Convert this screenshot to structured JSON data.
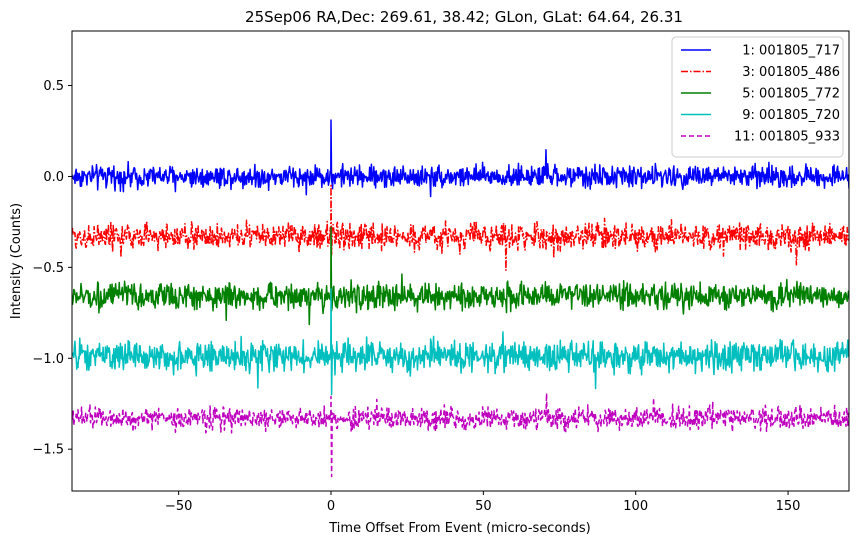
{
  "chart_data": {
    "type": "line",
    "title": "25Sep06 RA,Dec:  269.61,  38.42; GLon, GLat:   64.64,  26.31",
    "xlabel": "Time Offset From Event (micro-seconds)",
    "ylabel": "Intensity (Counts)",
    "xlim": [
      -85,
      170
    ],
    "ylim": [
      -1.73,
      0.8
    ],
    "xticks": [
      -50,
      0,
      50,
      100,
      150
    ],
    "xtick_labels": [
      "−50",
      "0",
      "50",
      "100",
      "150"
    ],
    "yticks": [
      0.5,
      0.0,
      -0.5,
      -1.0,
      -1.5
    ],
    "ytick_labels": [
      "0.5",
      "0.0",
      "−0.5",
      "−1.0",
      "−1.5"
    ],
    "grid": false,
    "legend_position": "top-right",
    "event_x": 0,
    "series": [
      {
        "name": "1: 001805_717",
        "label": "1: 001805_717",
        "color": "#0000ff",
        "dash": "solid",
        "baseline": 0.0,
        "noise_amplitude": 0.03,
        "spike_peak": 0.31,
        "spike_trough": -0.03
      },
      {
        "name": "3: 001805_486",
        "label": "3: 001805_486",
        "color": "#ff0000",
        "dash": "dashdot",
        "baseline": -0.33,
        "noise_amplitude": 0.035,
        "spike_peak": -0.05,
        "spike_trough": -0.43
      },
      {
        "name": "5: 001805_772",
        "label": "5: 001805_772",
        "color": "#008000",
        "dash": "solid",
        "baseline": -0.66,
        "noise_amplitude": 0.035,
        "spike_peak": -0.28,
        "spike_trough": -0.74
      },
      {
        "name": "9: 001805_720",
        "label": "9: 001805_720",
        "color": "#00bfbf",
        "dash": "solid",
        "baseline": -0.99,
        "noise_amplitude": 0.04,
        "spike_peak": -0.62,
        "spike_trough": -1.2
      },
      {
        "name": "11: 001805_933",
        "label": "11: 001805_933",
        "color": "#bf00bf",
        "dash": "dashed",
        "baseline": -1.33,
        "noise_amplitude": 0.03,
        "spike_peak": -1.21,
        "spike_trough": -1.65
      }
    ]
  }
}
